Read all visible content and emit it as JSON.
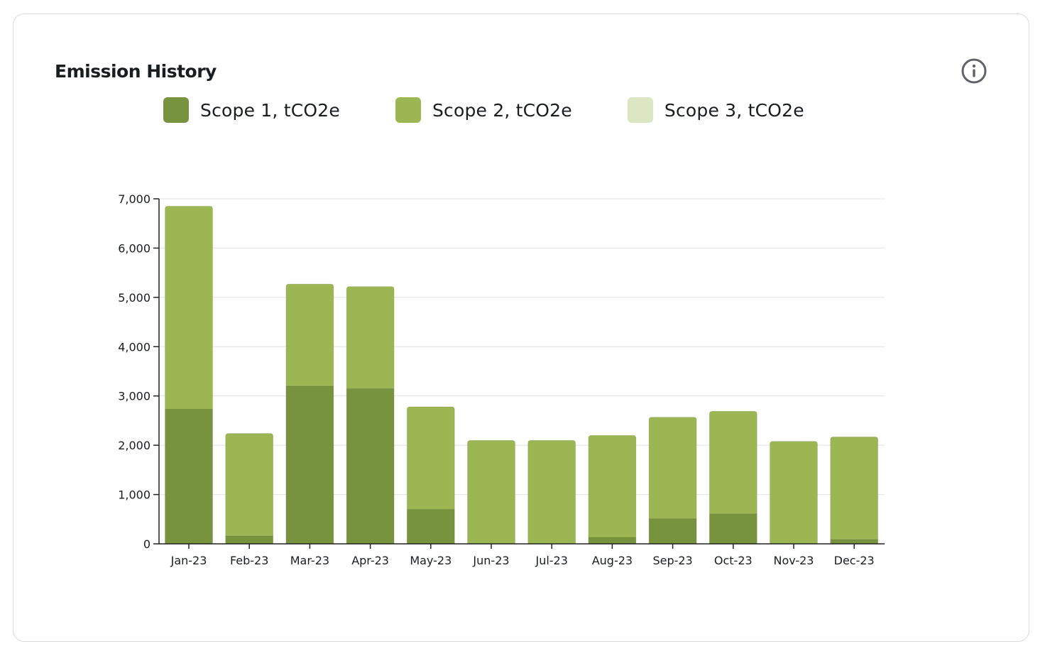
{
  "card": {
    "title": "Emission History",
    "info_icon": "info-circle-icon"
  },
  "colors": {
    "scope1": "#78933d",
    "scope2": "#9bb652",
    "scope3": "#dde6c3",
    "grid": "#e2e2e2",
    "axis": "#222222"
  },
  "chart_data": {
    "type": "bar",
    "stacked": true,
    "title": "Emission History",
    "xlabel": "",
    "ylabel": "",
    "ylim": [
      0,
      7000
    ],
    "yticks": [
      0,
      1000,
      2000,
      3000,
      4000,
      5000,
      6000,
      7000
    ],
    "ytick_labels": [
      "0",
      "1,000",
      "2,000",
      "3,000",
      "4,000",
      "5,000",
      "6,000",
      "7,000"
    ],
    "grid": true,
    "legend_position": "top",
    "categories": [
      "Jan-23",
      "Feb-23",
      "Mar-23",
      "Apr-23",
      "May-23",
      "Jun-23",
      "Jul-23",
      "Aug-23",
      "Sep-23",
      "Oct-23",
      "Nov-23",
      "Dec-23"
    ],
    "series": [
      {
        "name": "Scope 1, tCO2e",
        "key": "scope1",
        "values": [
          2730,
          160,
          3200,
          3150,
          700,
          0,
          0,
          130,
          510,
          610,
          0,
          90
        ]
      },
      {
        "name": "Scope 2, tCO2e",
        "key": "scope2",
        "values": [
          4120,
          2080,
          2070,
          2070,
          2080,
          2100,
          2100,
          2070,
          2060,
          2080,
          2080,
          2080
        ]
      },
      {
        "name": "Scope 3, tCO2e",
        "key": "scope3",
        "values": [
          0,
          0,
          0,
          0,
          0,
          0,
          0,
          0,
          0,
          0,
          0,
          0
        ]
      }
    ]
  }
}
